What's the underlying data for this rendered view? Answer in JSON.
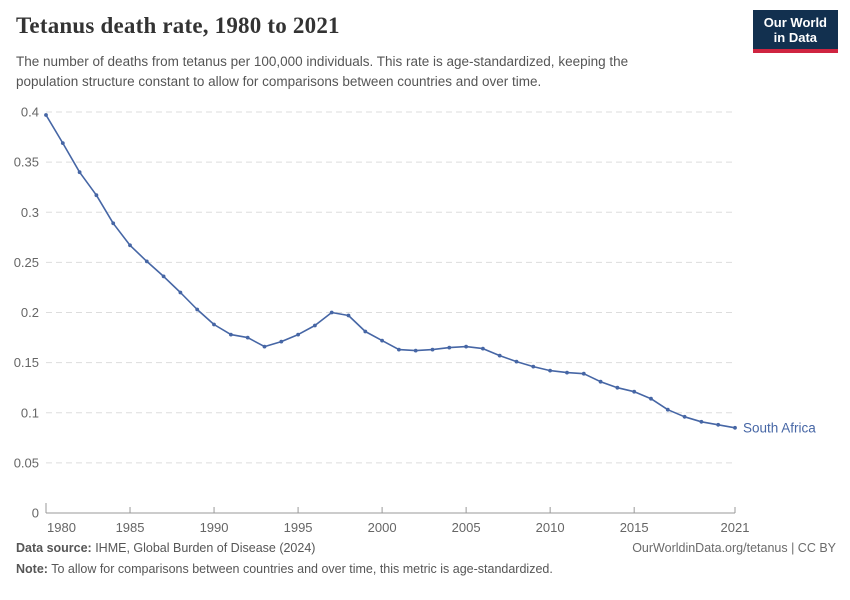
{
  "header": {
    "title": "Tetanus death rate, 1980 to 2021",
    "subtitle": "The number of deaths from tetanus per 100,000 individuals. This rate is age-standardized, keeping the population structure constant to allow for comparisons between countries and over time."
  },
  "logo": {
    "line1": "Our World",
    "line2": "in Data",
    "bg_color": "#12304f",
    "accent_color": "#cf2440"
  },
  "chart_data": {
    "type": "line",
    "title": "Tetanus death rate, 1980 to 2021",
    "xlabel": "",
    "ylabel": "",
    "x": [
      1980,
      1981,
      1982,
      1983,
      1984,
      1985,
      1986,
      1987,
      1988,
      1989,
      1990,
      1991,
      1992,
      1993,
      1994,
      1995,
      1996,
      1997,
      1998,
      1999,
      2000,
      2001,
      2002,
      2003,
      2004,
      2005,
      2006,
      2007,
      2008,
      2009,
      2010,
      2011,
      2012,
      2013,
      2014,
      2015,
      2016,
      2017,
      2018,
      2019,
      2020,
      2021
    ],
    "series": [
      {
        "name": "South Africa",
        "color": "#4666a5",
        "values": [
          0.397,
          0.369,
          0.34,
          0.317,
          0.289,
          0.267,
          0.251,
          0.236,
          0.22,
          0.203,
          0.188,
          0.178,
          0.175,
          0.166,
          0.171,
          0.178,
          0.187,
          0.2,
          0.197,
          0.181,
          0.172,
          0.163,
          0.162,
          0.163,
          0.165,
          0.166,
          0.164,
          0.157,
          0.151,
          0.146,
          0.142,
          0.14,
          0.139,
          0.131,
          0.125,
          0.121,
          0.114,
          0.103,
          0.096,
          0.091,
          0.088,
          0.085
        ]
      }
    ],
    "xlim": [
      1980,
      2021
    ],
    "ylim": [
      0,
      0.4
    ],
    "xticks": [
      1980,
      1985,
      1990,
      1995,
      2000,
      2005,
      2010,
      2015,
      2021
    ],
    "yticks": [
      0,
      0.05,
      0.1,
      0.15,
      0.2,
      0.25,
      0.3,
      0.35,
      0.4
    ],
    "grid": "horizontal-dashed",
    "legend": "end-of-line-label"
  },
  "colors": {
    "line": "#4666a5",
    "grid": "#dddddd",
    "axis": "#999999",
    "tick_text": "#666666"
  },
  "footer": {
    "datasource_label": "Data source:",
    "datasource_text": " IHME, Global Burden of Disease (2024)",
    "link": "OurWorldinData.org/tetanus | CC BY",
    "note_label": "Note:",
    "note_text": " To allow for comparisons between countries and over time, this metric is age-standardized."
  }
}
